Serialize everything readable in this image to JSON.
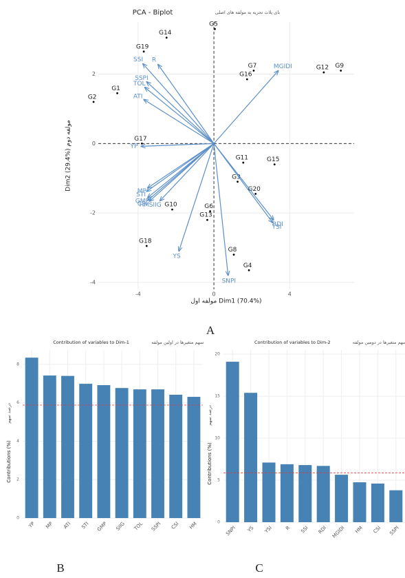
{
  "chart_data": [
    {
      "type": "biplot",
      "title": "PCA - Biplot",
      "subtitle": "بای پلات تجزیه به مولفه های اصلی",
      "x_label": "مولفه اول Dim1 (70.4%)",
      "y_label": "Dim2 (29.4%) مولفه دوم",
      "xlim": [
        -6.1,
        7.4
      ],
      "ylim": [
        -4.2,
        3.5
      ],
      "xticks": [
        -4,
        0,
        4
      ],
      "yticks": [
        -4,
        -2,
        0,
        2
      ],
      "grid": true,
      "points": {
        "color": "#000000",
        "labels": [
          "G14",
          "G5",
          "G19",
          "G7",
          "G16",
          "G12",
          "G9",
          "G1",
          "G2",
          "G17",
          "G11",
          "G15",
          "G3",
          "G20",
          "G6",
          "G10",
          "G13",
          "G18",
          "G8",
          "G4"
        ],
        "x": [
          -2.5,
          0.05,
          -3.7,
          2.1,
          1.75,
          5.8,
          6.7,
          -5.1,
          -6.35,
          -3.8,
          1.55,
          3.2,
          1.25,
          2.2,
          -0.2,
          -2.2,
          -0.35,
          -3.55,
          1.05,
          1.85
        ],
        "y": [
          3.05,
          3.3,
          2.65,
          2.1,
          1.85,
          2.05,
          2.1,
          1.45,
          1.2,
          0.0,
          -0.55,
          -0.6,
          -1.1,
          -1.45,
          -1.95,
          -1.9,
          -2.2,
          -2.95,
          -3.2,
          -3.65
        ]
      },
      "arrows": {
        "color": "#5b8fc9",
        "labels": [
          "R",
          "SSI",
          "SSPI",
          "TOL",
          "ATI",
          "MGIDI",
          "YP",
          "MP",
          "STI",
          "GMP",
          "CSI",
          "HM",
          "SIIG",
          "YS",
          "SNPI",
          "RDI",
          "YSI"
        ],
        "x": [
          -2.95,
          -3.75,
          -3.55,
          -3.65,
          -3.7,
          3.4,
          -3.85,
          -3.5,
          -3.55,
          -3.5,
          -3.5,
          -3.4,
          -2.85,
          -1.85,
          0.75,
          3.15,
          3.1
        ],
        "y": [
          2.28,
          2.3,
          1.78,
          1.62,
          1.27,
          2.1,
          -0.08,
          -1.28,
          -1.38,
          -1.56,
          -1.64,
          -1.66,
          -1.65,
          -3.1,
          -3.8,
          -2.2,
          -2.28
        ]
      }
    },
    {
      "type": "bar",
      "title": "Contribution of variables to Dim-1",
      "subtitle": "سهم متغیرها در اولین مولفه",
      "y_label": "Contributions (%)",
      "y_label_2": "درصد سهم",
      "color": "#4682b4",
      "reference_line": 5.88,
      "reference_color": "#e0393e",
      "categories": [
        "YP",
        "MP",
        "ATI",
        "STI",
        "GMP",
        "SIIG",
        "TOL",
        "SSPI",
        "CSI",
        "HM"
      ],
      "values": [
        8.35,
        7.42,
        7.4,
        6.99,
        6.92,
        6.77,
        6.7,
        6.7,
        6.42,
        6.31
      ],
      "ylim": [
        0,
        8.75
      ],
      "yticks": [
        0,
        2,
        4,
        6,
        8
      ],
      "grid": true
    },
    {
      "type": "bar",
      "title": "Contribution of variables to Dim-2",
      "subtitle": "سهم متغیرها در دومین مولفه",
      "y_label": "Contributions (%)",
      "y_label_2": "درصد سهم",
      "color": "#4682b4",
      "reference_line": 5.88,
      "reference_color": "#e0393e",
      "categories": [
        "SNPI",
        "YS",
        "YSI",
        "R",
        "SSI",
        "RDI",
        "MGIDI",
        "HM",
        "CSI",
        "SSPI"
      ],
      "values": [
        19.1,
        15.4,
        7.1,
        6.9,
        6.8,
        6.7,
        5.65,
        4.75,
        4.6,
        3.8
      ],
      "ylim": [
        0,
        20.5
      ],
      "yticks": [
        0,
        5,
        10,
        15,
        20
      ],
      "grid": true
    }
  ],
  "panel_labels": [
    "A",
    "B",
    "C"
  ]
}
